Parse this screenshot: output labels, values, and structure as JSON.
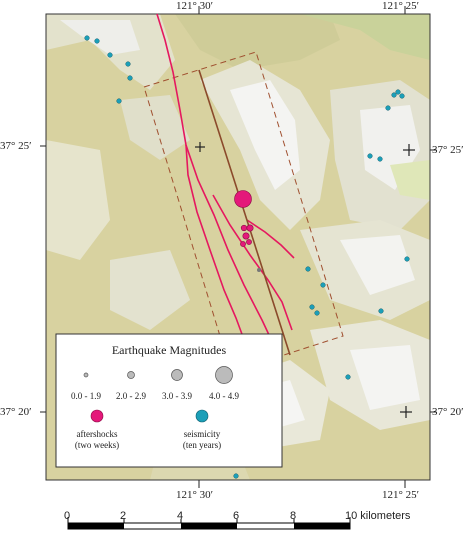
{
  "coords": {
    "top_left": "121° 30′",
    "top_right": "121° 25′",
    "bottom_left": "121° 30′",
    "bottom_right": "121° 25′",
    "left_upper": "37° 25′",
    "left_lower": "37° 20′",
    "right_upper": "37° 25′",
    "right_lower": "37° 20′"
  },
  "legend": {
    "title": "Earthquake Magnitudes",
    "ranges": [
      "0.0 - 1.9",
      "2.0 - 2.9",
      "3.0 - 3.9",
      "4.0 - 4.9"
    ],
    "aftershocks_line1": "aftershocks",
    "aftershocks_line2": "(two weeks)",
    "seismicity_line1": "seismicity",
    "seismicity_line2": "(ten years)"
  },
  "scale": {
    "ticks": [
      "0",
      "2",
      "4",
      "6",
      "8"
    ],
    "end_label": "10 kilometers"
  },
  "colors": {
    "aftershock": "#e4187a",
    "seismicity": "#1b9fb8",
    "fault": "#e5185f",
    "rupture": "#8b4a2b",
    "box": "#a05030",
    "terrain_low": "#d9d3a1",
    "terrain_high": "#f2f2f0"
  }
}
